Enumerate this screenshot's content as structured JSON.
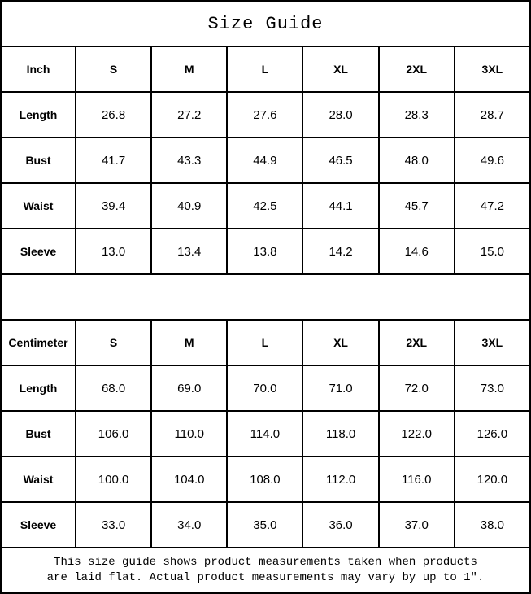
{
  "title": "Size Guide",
  "tables": [
    {
      "unit": "Inch",
      "columns": [
        "S",
        "M",
        "L",
        "XL",
        "2XL",
        "3XL"
      ],
      "rows": [
        {
          "label": "Length",
          "values": [
            "26.8",
            "27.2",
            "27.6",
            "28.0",
            "28.3",
            "28.7"
          ]
        },
        {
          "label": "Bust",
          "values": [
            "41.7",
            "43.3",
            "44.9",
            "46.5",
            "48.0",
            "49.6"
          ]
        },
        {
          "label": "Waist",
          "values": [
            "39.4",
            "40.9",
            "42.5",
            "44.1",
            "45.7",
            "47.2"
          ]
        },
        {
          "label": "Sleeve",
          "values": [
            "13.0",
            "13.4",
            "13.8",
            "14.2",
            "14.6",
            "15.0"
          ]
        }
      ]
    },
    {
      "unit": "Centimeter",
      "columns": [
        "S",
        "M",
        "L",
        "XL",
        "2XL",
        "3XL"
      ],
      "rows": [
        {
          "label": "Length",
          "values": [
            "68.0",
            "69.0",
            "70.0",
            "71.0",
            "72.0",
            "73.0"
          ]
        },
        {
          "label": "Bust",
          "values": [
            "106.0",
            "110.0",
            "114.0",
            "118.0",
            "122.0",
            "126.0"
          ]
        },
        {
          "label": "Waist",
          "values": [
            "100.0",
            "104.0",
            "108.0",
            "112.0",
            "116.0",
            "120.0"
          ]
        },
        {
          "label": "Sleeve",
          "values": [
            "33.0",
            "34.0",
            "35.0",
            "36.0",
            "37.0",
            "38.0"
          ]
        }
      ]
    }
  ],
  "footer": {
    "line1": "This size guide shows product measurements taken when products",
    "line2": "are laid flat. Actual product measurements may vary by up to 1″."
  },
  "colors": {
    "border": "#000000",
    "background": "#ffffff",
    "text": "#000000"
  }
}
